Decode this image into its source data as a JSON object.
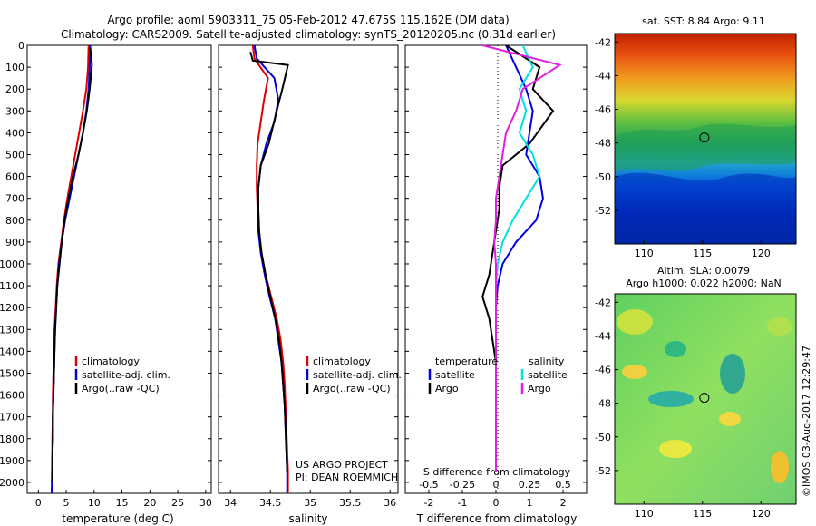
{
  "header": {
    "line1": "Argo profile: aoml 5903311_75 05-Feb-2012 47.675S 115.162E (DM data)",
    "line2": "Climatology: CARS2009. Satellite-adjusted climatology: synTS_20120205.nc (0.31d earlier)"
  },
  "depth_ticks": [
    "0",
    "100",
    "200",
    "300",
    "400",
    "500",
    "600",
    "700",
    "800",
    "900",
    "1000",
    "1100",
    "1200",
    "1300",
    "1400",
    "1500",
    "1600",
    "1700",
    "1800",
    "1900",
    "2000"
  ],
  "colors": {
    "climatology": "#e00000",
    "satellite": "#0000e0",
    "argo": "#000000",
    "sal_satellite": "#00e0e0",
    "sal_argo": "#e020e0"
  },
  "chart_data": [
    {
      "type": "line",
      "xlabel": "temperature (deg C)",
      "xticks": [
        "0",
        "5",
        "10",
        "15",
        "20",
        "25",
        "30"
      ],
      "xlim": [
        -2,
        31
      ],
      "ylim": [
        2050,
        0
      ],
      "legend": [
        "climatology",
        "satellite-adj. clim.",
        "Argo(..raw -QC)"
      ],
      "series": [
        {
          "name": "climatology",
          "x": [
            9.0,
            8.9,
            8.6,
            8.0,
            7.3,
            6.6,
            5.9,
            5.2,
            4.6,
            4.1,
            3.6,
            3.3,
            3.1,
            2.9,
            2.8,
            2.7,
            2.6,
            2.6,
            2.5,
            2.5,
            2.4,
            2.4
          ],
          "y": [
            0,
            100,
            200,
            300,
            400,
            500,
            600,
            700,
            800,
            900,
            1000,
            1100,
            1200,
            1300,
            1400,
            1500,
            1600,
            1700,
            1800,
            1900,
            2000,
            2050
          ]
        },
        {
          "name": "satellite-adj. clim.",
          "x": [
            9.3,
            9.2,
            9.0,
            8.6,
            8.0,
            7.2,
            6.4,
            5.6,
            4.8,
            4.2,
            3.7,
            3.4,
            3.2,
            3.0,
            2.9,
            2.8,
            2.7,
            2.6,
            2.6,
            2.5,
            2.5,
            2.4
          ],
          "y": [
            0,
            100,
            200,
            300,
            400,
            500,
            600,
            700,
            800,
            900,
            1000,
            1100,
            1200,
            1300,
            1400,
            1500,
            1600,
            1700,
            1800,
            1900,
            2000,
            2050
          ]
        },
        {
          "name": "Argo(..raw -QC)",
          "x": [
            9.3,
            9.6,
            9.2,
            8.7,
            8.0,
            7.2,
            6.2,
            5.4,
            4.7,
            4.2,
            3.8,
            3.4,
            3.2,
            3.0,
            2.9,
            2.8,
            2.7,
            2.6,
            2.6,
            2.5,
            2.5
          ],
          "y": [
            10,
            90,
            200,
            300,
            400,
            500,
            600,
            700,
            800,
            900,
            1000,
            1100,
            1200,
            1300,
            1400,
            1500,
            1600,
            1700,
            1800,
            1900,
            2000
          ]
        }
      ]
    },
    {
      "type": "line",
      "xlabel": "salinity",
      "xticks": [
        "34",
        "34.5",
        "35",
        "35.5",
        "36"
      ],
      "xlim": [
        33.85,
        36.1
      ],
      "ylim": [
        2050,
        0
      ],
      "legend": [
        "climatology",
        "satellite-adj. clim.",
        "Argo(..raw -QC)"
      ],
      "annotations": [
        "US ARGO PROJECT",
        "PI: DEAN ROEMMICH"
      ],
      "series": [
        {
          "name": "climatology",
          "x": [
            34.28,
            34.3,
            34.47,
            34.42,
            34.38,
            34.34,
            34.33,
            34.33,
            34.34,
            34.35,
            34.39,
            34.44,
            34.51,
            34.58,
            34.63,
            34.66,
            34.68,
            34.69,
            34.7,
            34.71,
            34.72,
            34.72
          ],
          "y": [
            0,
            60,
            150,
            250,
            350,
            450,
            550,
            650,
            750,
            850,
            950,
            1050,
            1150,
            1250,
            1350,
            1450,
            1550,
            1650,
            1750,
            1850,
            1950,
            2050
          ]
        },
        {
          "name": "satellite-adj. clim.",
          "x": [
            34.3,
            34.33,
            34.55,
            34.6,
            34.55,
            34.45,
            34.38,
            34.35,
            34.34,
            34.35,
            34.38,
            34.43,
            34.49,
            34.56,
            34.6,
            34.64,
            34.66,
            34.68,
            34.69,
            34.7,
            34.71,
            34.71
          ],
          "y": [
            0,
            60,
            150,
            250,
            350,
            450,
            550,
            650,
            750,
            850,
            950,
            1050,
            1150,
            1250,
            1350,
            1450,
            1550,
            1650,
            1750,
            1850,
            1950,
            2050
          ]
        },
        {
          "name": "Argo(..raw -QC)",
          "x": [
            34.25,
            34.28,
            34.72,
            34.65,
            34.58,
            34.48,
            34.38,
            34.35,
            34.35,
            34.36,
            34.39,
            34.44,
            34.5,
            34.56,
            34.61,
            34.64,
            34.66,
            34.68,
            34.69,
            34.7,
            34.71
          ],
          "y": [
            30,
            70,
            90,
            200,
            300,
            450,
            550,
            650,
            750,
            850,
            950,
            1050,
            1150,
            1250,
            1350,
            1450,
            1550,
            1650,
            1750,
            1850,
            1950
          ]
        }
      ]
    },
    {
      "type": "line",
      "xlabel": "T difference from climatology",
      "top_label": "S difference from climatology",
      "xticks": [
        "-2",
        "-1",
        "0",
        "1",
        "2"
      ],
      "top_ticks": [
        "-0.5",
        "-0.25",
        "0",
        "0.25",
        "0.5"
      ],
      "xlim": [
        -2.7,
        2.7
      ],
      "ylim": [
        2050,
        0
      ],
      "legend_titles": [
        "temperature",
        "salinity"
      ],
      "legend": [
        "satellite",
        "Argo",
        "satellite",
        "Argo"
      ],
      "series": [
        {
          "name": "satellite",
          "x": [
            0.3,
            0.6,
            0.9,
            1.1,
            1.0,
            0.9,
            1.3,
            1.4,
            1.2,
            0.6,
            0.2,
            0.05,
            0.0,
            0.0,
            0.0,
            0.0,
            0.0,
            0.0,
            0.0,
            0.0
          ],
          "y": [
            0,
            100,
            200,
            300,
            400,
            500,
            600,
            700,
            800,
            900,
            1000,
            1100,
            1200,
            1300,
            1400,
            1500,
            1600,
            1700,
            1800,
            1950
          ]
        },
        {
          "name": "Argo",
          "x": [
            0.3,
            1.3,
            1.1,
            1.7,
            1.0,
            0.2,
            0.1,
            0.1,
            0.0,
            -0.1,
            -0.2,
            -0.4,
            -0.2,
            -0.1,
            0.0,
            0.0,
            0.0,
            0.0,
            0.0,
            0.0
          ],
          "y": [
            0,
            100,
            200,
            300,
            450,
            550,
            650,
            750,
            850,
            950,
            1050,
            1150,
            1250,
            1350,
            1450,
            1550,
            1650,
            1750,
            1850,
            1950
          ]
        },
        {
          "name": "satellite",
          "x": [
            0.8,
            1.1,
            0.7,
            0.9,
            0.7,
            1.1,
            1.3,
            0.9,
            0.5,
            0.2,
            0.05,
            0.0,
            0.0,
            0.0,
            0.0,
            0.0,
            0.0,
            0.0,
            0.0,
            0.0
          ],
          "y": [
            0,
            100,
            200,
            300,
            400,
            500,
            600,
            700,
            800,
            900,
            1000,
            1100,
            1200,
            1300,
            1400,
            1500,
            1600,
            1700,
            1800,
            1950
          ]
        },
        {
          "name": "Argo",
          "x": [
            -0.4,
            1.9,
            0.8,
            0.6,
            0.3,
            0.2,
            0.1,
            0.0,
            0.0,
            -0.05,
            0.0,
            0.0,
            0.0,
            0.0,
            0.0,
            0.0,
            0.0,
            0.0,
            0.0,
            0.0
          ],
          "y": [
            0,
            90,
            200,
            300,
            400,
            500,
            600,
            700,
            800,
            900,
            1000,
            1100,
            1200,
            1300,
            1400,
            1500,
            1600,
            1700,
            1800,
            1950
          ]
        }
      ]
    },
    {
      "type": "heatmap",
      "title": "sat. SST: 8.84 Argo: 9.11",
      "xticks": [
        "110",
        "115",
        "120"
      ],
      "yticks": [
        "-42",
        "-44",
        "-46",
        "-48",
        "-50",
        "-52"
      ],
      "xlim": [
        107.5,
        123
      ],
      "ylim": [
        -54,
        -41.5
      ],
      "marker": {
        "lon": 115.162,
        "lat": -47.675
      }
    },
    {
      "type": "heatmap",
      "title": "Altim. SLA: 0.0079",
      "subtitle": "Argo h1000: 0.022 h2000: NaN",
      "xticks": [
        "110",
        "115",
        "120"
      ],
      "yticks": [
        "-42",
        "-44",
        "-46",
        "-48",
        "-50",
        "-52"
      ],
      "xlim": [
        107.5,
        123
      ],
      "ylim": [
        -54,
        -41.5
      ],
      "marker": {
        "lon": 115.162,
        "lat": -47.675
      }
    }
  ],
  "footer": {
    "credit": "©IMOS 03-Aug-2017 12:29:47"
  }
}
